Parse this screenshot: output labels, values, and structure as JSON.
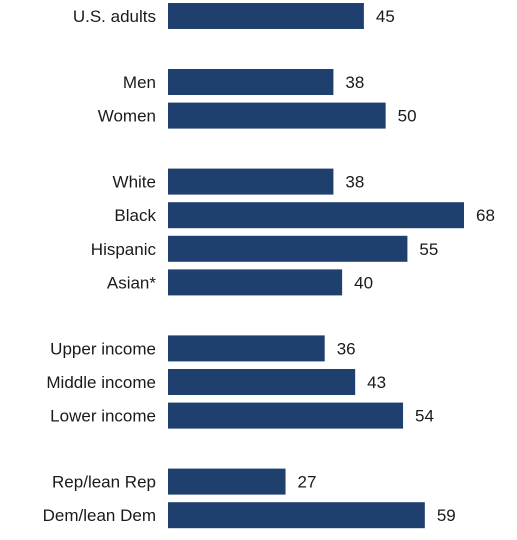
{
  "chart_data": {
    "type": "bar",
    "orientation": "horizontal",
    "categories": [
      "U.S. adults",
      "Men",
      "Women",
      "White",
      "Black",
      "Hispanic",
      "Asian*",
      "Upper income",
      "Middle income",
      "Lower income",
      "Rep/lean Rep",
      "Dem/lean Dem"
    ],
    "groups": [
      [
        "U.S. adults"
      ],
      [
        "Men",
        "Women"
      ],
      [
        "White",
        "Black",
        "Hispanic",
        "Asian*"
      ],
      [
        "Upper income",
        "Middle income",
        "Lower income"
      ],
      [
        "Rep/lean Rep",
        "Dem/lean Dem"
      ]
    ],
    "values": [
      45,
      38,
      50,
      38,
      68,
      55,
      40,
      36,
      43,
      54,
      27,
      59
    ],
    "xlim": [
      0,
      68
    ],
    "grid": false,
    "legend": "none",
    "bar_color": "#1f3f6e"
  }
}
